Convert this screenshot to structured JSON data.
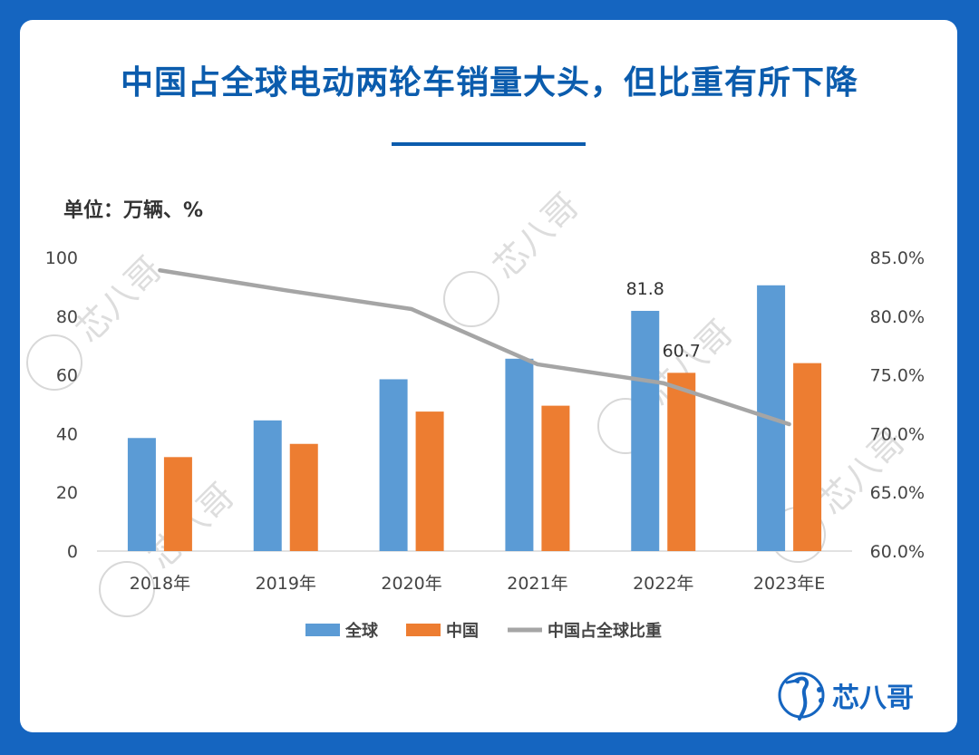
{
  "title": "中国占全球电动两轮车销量大头，但比重有所下降",
  "unit_label": "单位：万辆、%",
  "brand": "芯八哥",
  "watermark_text": "芯八哥",
  "colors": {
    "background": "#1565c0",
    "title": "#0b5cad",
    "global": "#5b9bd5",
    "china": "#ed7d31",
    "share": "#a5a5a5"
  },
  "chart_data": {
    "type": "bar",
    "categories": [
      "2018年",
      "2019年",
      "2020年",
      "2021年",
      "2022年",
      "2023年E"
    ],
    "series": [
      {
        "name": "全球",
        "type": "bar",
        "axis": "left",
        "color": "#5b9bd5",
        "values": [
          38.5,
          44.5,
          58.5,
          65.5,
          81.8,
          90.5
        ]
      },
      {
        "name": "中国",
        "type": "bar",
        "axis": "left",
        "color": "#ed7d31",
        "values": [
          32.0,
          36.5,
          47.5,
          49.5,
          60.7,
          64.0
        ]
      },
      {
        "name": "中国占全球比重",
        "type": "line",
        "axis": "right",
        "color": "#a5a5a5",
        "values": [
          83.9,
          82.2,
          80.6,
          75.9,
          74.3,
          70.8
        ]
      }
    ],
    "data_labels": [
      {
        "series": "全球",
        "category": "2022年",
        "text": "81.8"
      },
      {
        "series": "中国",
        "category": "2022年",
        "text": "60.7"
      }
    ],
    "y_left": {
      "min": 0,
      "max": 100,
      "ticks": [
        "0",
        "20",
        "40",
        "60",
        "80",
        "100"
      ]
    },
    "y_right": {
      "min": 60,
      "max": 85,
      "ticks": [
        "60.0%",
        "65.0%",
        "70.0%",
        "75.0%",
        "80.0%",
        "85.0%"
      ]
    },
    "legend": {
      "position": "bottom",
      "entries": [
        "全球",
        "中国",
        "中国占全球比重"
      ]
    },
    "grid": false
  }
}
